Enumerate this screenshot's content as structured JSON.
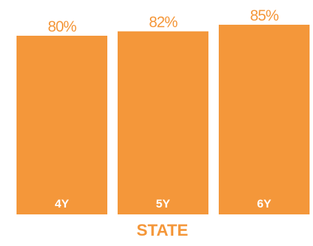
{
  "chart_data": {
    "type": "bar",
    "categories": [
      "4Y",
      "5Y",
      "6Y"
    ],
    "values": [
      80,
      82,
      85
    ],
    "value_labels": [
      "80%",
      "82%",
      "85%"
    ],
    "group_label": "STATE",
    "bar_color": "#f4973a",
    "text_color": "#f4973a",
    "tick_label_color": "#ffffff",
    "ylim": [
      0,
      100
    ],
    "grid": false
  }
}
